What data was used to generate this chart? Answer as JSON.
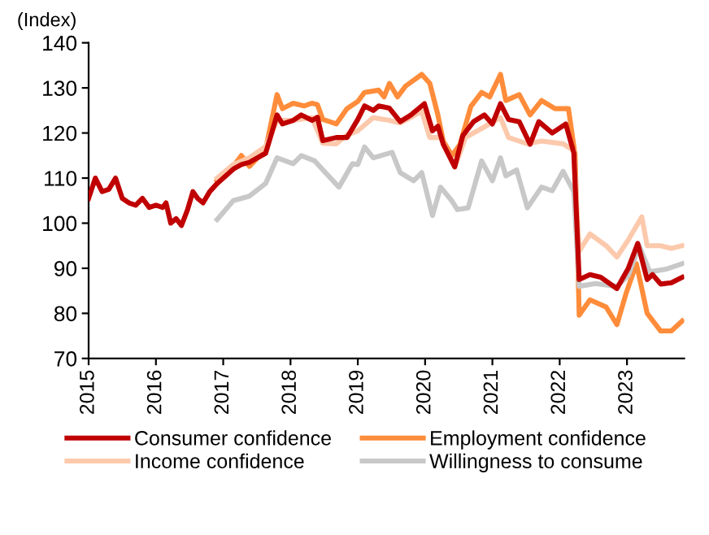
{
  "chart_data": {
    "type": "line",
    "ylabel": "(Index)",
    "xlim": [
      2015,
      2023.85
    ],
    "xticks": [
      2015,
      2016,
      2017,
      2018,
      2019,
      2020,
      2021,
      2022,
      2023
    ],
    "ylim": [
      70,
      140
    ],
    "yticks": [
      70,
      80,
      90,
      100,
      110,
      120,
      130,
      140
    ],
    "grid": false,
    "legend": "bottom",
    "marker": "none",
    "line_style": "solid",
    "series": [
      {
        "name": "Consumer confidence",
        "color": "#c00000",
        "x": [
          2015.0,
          2015.1,
          2015.2,
          2015.3,
          2015.4,
          2015.5,
          2015.6,
          2015.7,
          2015.8,
          2015.9,
          2016.0,
          2016.1,
          2016.15,
          2016.22,
          2016.3,
          2016.38,
          2016.47,
          2016.55,
          2016.62,
          2016.7,
          2016.8,
          2016.91,
          2017.15,
          2017.27,
          2017.39,
          2017.63,
          2017.8,
          2017.88,
          2018.04,
          2018.16,
          2018.32,
          2018.4,
          2018.48,
          2018.68,
          2018.84,
          2019.0,
          2019.1,
          2019.23,
          2019.31,
          2019.47,
          2019.63,
          2019.79,
          2019.99,
          2020.11,
          2020.19,
          2020.27,
          2020.44,
          2020.56,
          2020.72,
          2020.88,
          2021.0,
          2021.12,
          2021.24,
          2021.4,
          2021.56,
          2021.69,
          2021.89,
          2022.09,
          2022.21,
          2022.29,
          2022.45,
          2022.61,
          2022.85,
          2023.02,
          2023.16,
          2023.3,
          2023.38,
          2023.5,
          2023.66,
          2023.82
        ],
        "values": [
          105.5,
          110,
          107,
          107.5,
          110,
          105.5,
          104.5,
          104,
          105.5,
          103.5,
          104,
          103.5,
          104.5,
          100,
          101,
          99.5,
          103,
          107,
          105.5,
          104.5,
          107,
          108.8,
          112,
          113,
          113.5,
          115.5,
          124,
          122,
          122.8,
          124,
          122.8,
          123.5,
          118.3,
          119,
          119,
          123,
          126,
          125,
          126,
          125.5,
          122.5,
          124,
          126.5,
          120.5,
          121.5,
          117.5,
          112.5,
          119.4,
          122.5,
          124,
          122,
          126.5,
          123,
          122.5,
          117.5,
          122.5,
          120,
          122,
          115.6,
          87.5,
          88.6,
          88,
          85.5,
          90,
          95.5,
          87.5,
          88.6,
          86.5,
          86.8,
          88
        ]
      },
      {
        "name": "Employment confidence",
        "color": "#ff8c3a",
        "x": [
          2016.91,
          2017.15,
          2017.27,
          2017.39,
          2017.63,
          2017.8,
          2017.88,
          2018.04,
          2018.2,
          2018.32,
          2018.4,
          2018.48,
          2018.68,
          2018.84,
          2019.0,
          2019.1,
          2019.31,
          2019.39,
          2019.47,
          2019.59,
          2019.71,
          2019.95,
          2020.07,
          2020.19,
          2020.27,
          2020.4,
          2020.52,
          2020.68,
          2020.84,
          2020.96,
          2021.12,
          2021.2,
          2021.4,
          2021.56,
          2021.73,
          2021.93,
          2022.13,
          2022.23,
          2022.29,
          2022.45,
          2022.69,
          2022.85,
          2022.99,
          2023.14,
          2023.3,
          2023.5,
          2023.66,
          2023.82
        ],
        "values": [
          109.4,
          112.6,
          115,
          112.6,
          116.4,
          128.5,
          125.4,
          126.6,
          126,
          126.6,
          126.3,
          123,
          122,
          125.4,
          127,
          129,
          129.5,
          128,
          131,
          128,
          130.4,
          133,
          131,
          124,
          118.2,
          115,
          117.5,
          125.9,
          129,
          128,
          133,
          127.2,
          128.5,
          124,
          127.2,
          125.4,
          125.4,
          115,
          79.6,
          83,
          81.4,
          77.5,
          84.6,
          91,
          80,
          76.1,
          76.1,
          78.3
        ]
      },
      {
        "name": "Income confidence",
        "color": "#fcc9ac",
        "x": [
          2016.91,
          2017.15,
          2017.39,
          2017.63,
          2017.8,
          2018.04,
          2018.32,
          2018.48,
          2018.68,
          2018.84,
          2019.0,
          2019.23,
          2019.47,
          2019.63,
          2019.95,
          2020.07,
          2020.23,
          2020.44,
          2020.6,
          2020.84,
          2021.12,
          2021.24,
          2021.52,
          2021.73,
          2022.05,
          2022.21,
          2022.29,
          2022.45,
          2022.69,
          2022.85,
          2023.02,
          2023.22,
          2023.3,
          2023.5,
          2023.66,
          2023.82
        ],
        "values": [
          110,
          113,
          114.5,
          117,
          122.8,
          122.8,
          123.4,
          117.7,
          117.6,
          119.6,
          120.5,
          123.4,
          122.8,
          122.2,
          124.8,
          119,
          119,
          112.4,
          119,
          121,
          123.4,
          119,
          117.6,
          118.2,
          117.6,
          116.1,
          93.8,
          97.6,
          95,
          92.5,
          96.3,
          101.4,
          95,
          95,
          94.4,
          95
        ]
      },
      {
        "name": "Willingness to consume",
        "color": "#c8c8c8",
        "x": [
          2016.91,
          2017.15,
          2017.39,
          2017.63,
          2017.8,
          2018.04,
          2018.16,
          2018.36,
          2018.52,
          2018.72,
          2018.92,
          2019.0,
          2019.1,
          2019.23,
          2019.51,
          2019.63,
          2019.83,
          2019.95,
          2020.11,
          2020.23,
          2020.4,
          2020.48,
          2020.64,
          2020.84,
          2021.0,
          2021.12,
          2021.2,
          2021.36,
          2021.52,
          2021.73,
          2021.89,
          2022.05,
          2022.21,
          2022.29,
          2022.53,
          2022.85,
          2023.02,
          2023.18,
          2023.34,
          2023.58,
          2023.82
        ],
        "values": [
          100.8,
          105,
          106,
          108.8,
          114.5,
          113.2,
          115,
          113.8,
          111.2,
          108,
          113.2,
          113,
          116.9,
          114.5,
          115.7,
          111.2,
          109.4,
          111.2,
          101.7,
          108,
          104.9,
          103,
          103.4,
          113.8,
          109.4,
          114.5,
          110.5,
          111.8,
          103.4,
          108,
          107.2,
          111.5,
          107,
          86,
          86.6,
          86,
          88.4,
          95,
          89.2,
          89.8,
          91
        ]
      }
    ]
  }
}
